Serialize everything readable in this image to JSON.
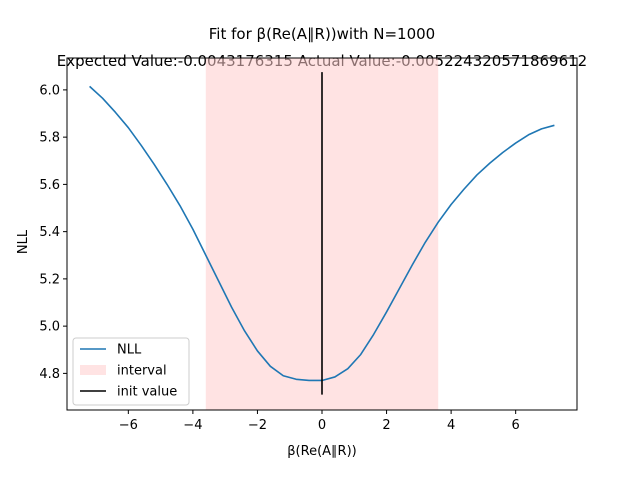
{
  "chart_data": {
    "type": "line",
    "title_line1": "Fit for β(Re(A∥R))with N=1000",
    "title_line2": "Expected Value:-0.0043176315 Actual Value:-0.005224320571869612",
    "xlabel": "β(Re(A∥R))",
    "ylabel": "NLL",
    "xlim": [
      -7.9,
      7.9
    ],
    "ylim": [
      4.645,
      6.135
    ],
    "xticks": [
      -6,
      -4,
      -2,
      0,
      2,
      4,
      6
    ],
    "yticks": [
      4.8,
      5.0,
      5.2,
      5.4,
      5.6,
      5.8,
      6.0
    ],
    "grid": false,
    "legend_position": "lower-left",
    "series": [
      {
        "name": "NLL",
        "kind": "line",
        "color": "#1f77b4",
        "x": [
          -7.2,
          -6.8,
          -6.4,
          -6.0,
          -5.6,
          -5.2,
          -4.8,
          -4.4,
          -4.0,
          -3.6,
          -3.2,
          -2.8,
          -2.4,
          -2.0,
          -1.6,
          -1.2,
          -0.8,
          -0.4,
          0.0,
          0.4,
          0.8,
          1.2,
          1.6,
          2.0,
          2.4,
          2.8,
          3.2,
          3.6,
          4.0,
          4.4,
          4.8,
          5.2,
          5.6,
          6.0,
          6.4,
          6.8,
          7.2
        ],
        "y": [
          6.015,
          5.965,
          5.905,
          5.84,
          5.765,
          5.685,
          5.6,
          5.51,
          5.41,
          5.3,
          5.19,
          5.08,
          4.98,
          4.895,
          4.83,
          4.79,
          4.775,
          4.77,
          4.77,
          4.785,
          4.82,
          4.88,
          4.965,
          5.06,
          5.16,
          5.26,
          5.355,
          5.44,
          5.515,
          5.58,
          5.64,
          5.69,
          5.735,
          5.775,
          5.81,
          5.835,
          5.85
        ]
      },
      {
        "name": "interval",
        "kind": "span",
        "color": "#ffcccc",
        "x0": -3.6,
        "x1": 3.6
      },
      {
        "name": "init value",
        "kind": "vline",
        "color": "#000000",
        "x": 0.0,
        "y0": 4.71,
        "y1": 6.075
      }
    ]
  }
}
